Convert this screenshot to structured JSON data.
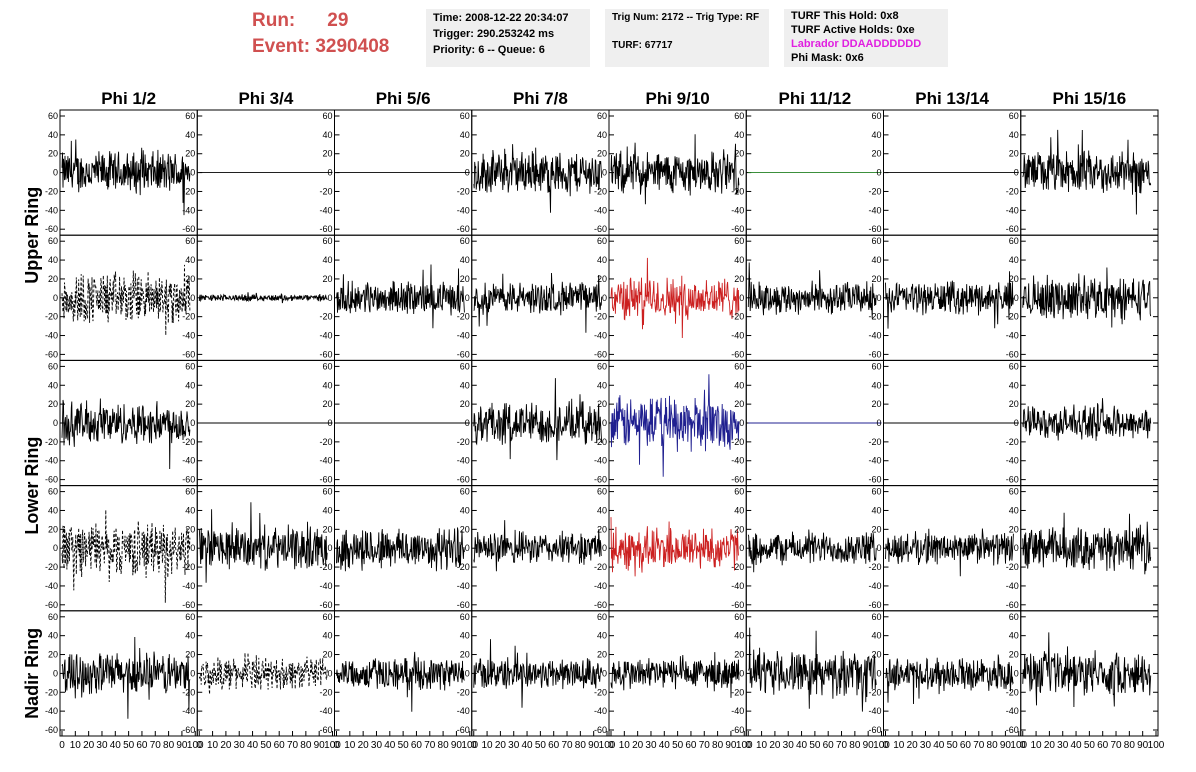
{
  "header": {
    "run_label": "Run:",
    "run_value": "29",
    "event_label": "Event:",
    "event_value": "3290408",
    "header_color": "#d05050"
  },
  "info_boxes": {
    "time": "Time: 2008-12-22 20:34:07",
    "trigger": "Trigger: 290.253242 ms",
    "priority": "Priority: 6 -- Queue: 6",
    "trig_num": "Trig Num: 2172 -- Trig Type: RF",
    "turf": "TURF: 67717",
    "turf_this_hold": "TURF This Hold: 0x8",
    "turf_active_holds": "TURF Active Holds: 0xe",
    "labrador": "Labrador DDAADDDDDD",
    "labrador_color": "#e020e0",
    "phi_mask": "Phi Mask: 0x6"
  },
  "chart_data": {
    "type": "line",
    "column_titles": [
      "Phi 1/2",
      "Phi 3/4",
      "Phi 5/6",
      "Phi 7/8",
      "Phi 9/10",
      "Phi 11/12",
      "Phi 13/14",
      "Phi 15/16"
    ],
    "ring_labels": [
      "Upper Ring",
      "Lower Ring",
      "Nadir Ring"
    ],
    "x_ticks": [
      "0",
      "10",
      "20",
      "30",
      "40",
      "50",
      "60",
      "70",
      "80",
      "90",
      "100"
    ],
    "y_ticks": [
      "60",
      "40",
      "20",
      "0",
      "-20",
      "-40",
      "-60"
    ],
    "xlim": [
      0,
      100
    ],
    "ylim": [
      -60,
      60
    ],
    "colors": {
      "normal": "#000000",
      "red": "#cc2020",
      "blue": "#202090",
      "green": "#208020"
    },
    "panels": [
      [
        "noise-amp20",
        "flat",
        "flat",
        "noise-amp20",
        "noise-amp20",
        "flat-green",
        "flat",
        "noise-amp20"
      ],
      [
        "dashed-amp25",
        "noise-amp3",
        "noise-amp15",
        "noise-amp15",
        "noise-red-amp20",
        "noise-amp15",
        "noise-amp15",
        "noise-amp20"
      ],
      [
        "noise-amp20",
        "flat",
        "flat",
        "noise-amp20",
        "noise-blue-amp25",
        "flat-blue",
        "flat",
        "noise-amp15"
      ],
      [
        "dashed-amp25",
        "noise-amp20",
        "noise-amp20",
        "noise-amp15",
        "noise-red-amp20",
        "noise-amp15",
        "noise-amp15",
        "noise-amp20"
      ],
      [
        "noise-amp20",
        "dashed-amp15",
        "noise-amp15",
        "noise-amp15",
        "noise-amp15",
        "noise-amp20",
        "noise-amp15",
        "noise-amp20"
      ]
    ]
  }
}
